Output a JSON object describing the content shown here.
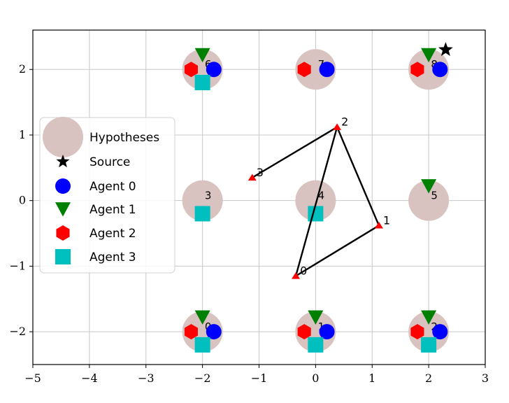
{
  "chart_data": {
    "type": "scatter",
    "xlim": [
      -5,
      3
    ],
    "ylim": [
      -2.5,
      2.6
    ],
    "x_ticks": [
      -5,
      -4,
      -3,
      -2,
      -1,
      0,
      1,
      2,
      3
    ],
    "y_ticks": [
      -2,
      -1,
      0,
      1,
      2
    ],
    "x_tick_labels": [
      "−5",
      "−4",
      "−3",
      "−2",
      "−1",
      "0",
      "1",
      "2",
      "3"
    ],
    "y_tick_labels": [
      "−2",
      "−1",
      "0",
      "1",
      "2"
    ],
    "grid": true,
    "legend_position": "left",
    "hypotheses": [
      {
        "label": "0",
        "x": -2,
        "y": -2
      },
      {
        "label": "1",
        "x": 0,
        "y": -2
      },
      {
        "label": "2",
        "x": 2,
        "y": -2
      },
      {
        "label": "3",
        "x": -2,
        "y": 0
      },
      {
        "label": "4",
        "x": 0,
        "y": 0
      },
      {
        "label": "5",
        "x": 2,
        "y": 0
      },
      {
        "label": "6",
        "x": -2,
        "y": 2
      },
      {
        "label": "7",
        "x": 0,
        "y": 2
      },
      {
        "label": "8",
        "x": 2,
        "y": 2
      }
    ],
    "source": {
      "x": 2.3,
      "y": 2.3
    },
    "agents": [
      {
        "name": "Agent 0",
        "marker": "circle",
        "color": "#0000ff",
        "offset": [
          0.2,
          0
        ],
        "hypotheses": [
          "0",
          "1",
          "2",
          "6",
          "7",
          "8"
        ]
      },
      {
        "name": "Agent 1",
        "marker": "triangle-down",
        "color": "#008000",
        "offset": [
          0,
          0.22
        ],
        "hypotheses": [
          "0",
          "1",
          "2",
          "5",
          "6",
          "8"
        ]
      },
      {
        "name": "Agent 2",
        "marker": "hexagon",
        "color": "#ff0000",
        "offset": [
          -0.2,
          0
        ],
        "hypotheses": [
          "0",
          "1",
          "2",
          "6",
          "7",
          "8"
        ]
      },
      {
        "name": "Agent 3",
        "marker": "square",
        "color": "#00bfbf",
        "offset": [
          0,
          -0.2
        ],
        "hypotheses": [
          "0",
          "1",
          "2",
          "3",
          "4",
          "6"
        ]
      }
    ],
    "network": {
      "nodes": [
        {
          "label": "0",
          "x": -0.35,
          "y": -1.15
        },
        {
          "label": "1",
          "x": 1.12,
          "y": -0.38
        },
        {
          "label": "2",
          "x": 0.38,
          "y": 1.12
        },
        {
          "label": "3",
          "x": -1.12,
          "y": 0.35
        }
      ],
      "edges": [
        [
          "3",
          "2"
        ],
        [
          "2",
          "1"
        ],
        [
          "1",
          "0"
        ],
        [
          "0",
          "2"
        ]
      ],
      "color": "#000000",
      "node_color": "#ff0000"
    },
    "legend": [
      {
        "label": "Hypotheses",
        "marker": "big-circle",
        "color": "#d8c3c0"
      },
      {
        "label": "Source",
        "marker": "star",
        "color": "#000000"
      },
      {
        "label": "Agent 0",
        "marker": "circle",
        "color": "#0000ff"
      },
      {
        "label": "Agent 1",
        "marker": "triangle-down",
        "color": "#008000"
      },
      {
        "label": "Agent 2",
        "marker": "hexagon",
        "color": "#ff0000"
      },
      {
        "label": "Agent 3",
        "marker": "square",
        "color": "#00bfbf"
      }
    ],
    "hypothesis_color": "#d8c3c0"
  }
}
